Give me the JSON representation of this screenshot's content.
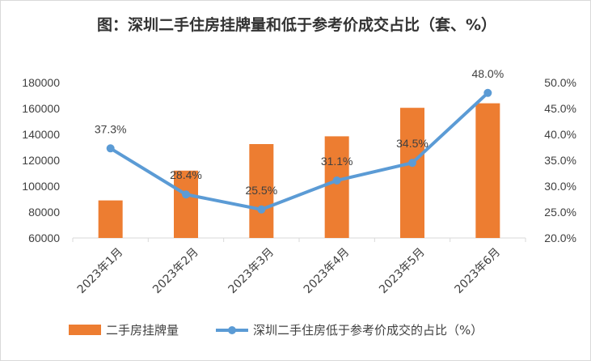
{
  "chart_data": {
    "type": "bar",
    "title": "图：深圳二手住房挂牌量和低于参考价成交占比（套、%）",
    "categories": [
      "2023年1月",
      "2023年2月",
      "2023年3月",
      "2023年4月",
      "2023年5月",
      "2023年6月"
    ],
    "series": [
      {
        "name": "二手房挂牌量",
        "type": "bar",
        "axis": "left",
        "color": "#ed7d31",
        "values": [
          89000,
          112000,
          132500,
          138500,
          160500,
          164000
        ]
      },
      {
        "name": "深圳二手住房低于参考价成交的占比（%）",
        "type": "line",
        "axis": "right",
        "color": "#5b9bd5",
        "values": [
          37.3,
          28.4,
          25.5,
          31.1,
          34.5,
          48.0
        ],
        "labels": [
          "37.3%",
          "28.4%",
          "25.5%",
          "31.1%",
          "34.5%",
          "48.0%"
        ]
      }
    ],
    "y_left": {
      "min": 60000,
      "max": 180000,
      "ticks": [
        "60000",
        "80000",
        "100000",
        "120000",
        "140000",
        "160000",
        "180000"
      ]
    },
    "y_right": {
      "min": 20,
      "max": 50,
      "ticks": [
        "20.0%",
        "25.0%",
        "30.0%",
        "35.0%",
        "40.0%",
        "45.0%",
        "50.0%"
      ]
    },
    "grid": false,
    "legend": "bottom"
  }
}
